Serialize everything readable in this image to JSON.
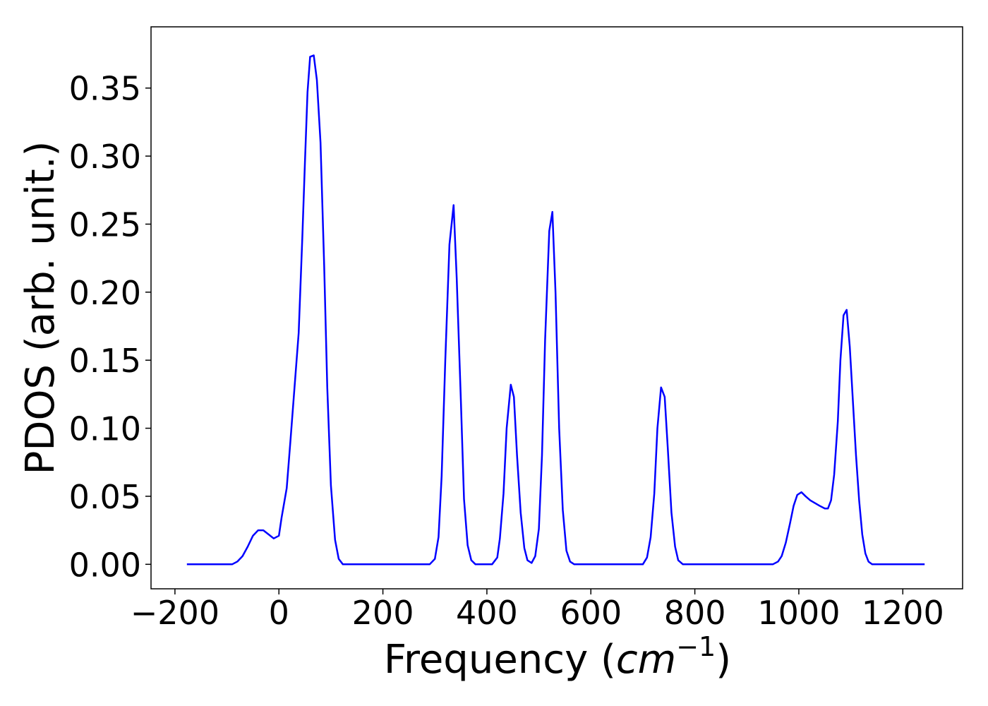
{
  "chart_data": {
    "type": "line",
    "xlabel": [
      "Frequency (",
      "cm",
      "−1",
      ")"
    ],
    "ylabel": "PDOS (arb. unit.)",
    "x": [
      -177,
      -90,
      -80,
      -70,
      -60,
      -50,
      -40,
      -30,
      -20,
      -10,
      0,
      5,
      15,
      22,
      30,
      38,
      45,
      50,
      55,
      60,
      67,
      73,
      80,
      87,
      93,
      100,
      108,
      115,
      123,
      140,
      290,
      300,
      307,
      313,
      320,
      328,
      336,
      342,
      350,
      356,
      363,
      370,
      378,
      410,
      420,
      425,
      432,
      438,
      446,
      452,
      458,
      465,
      472,
      478,
      486,
      493,
      500,
      506,
      512,
      520,
      526,
      532,
      539,
      546,
      553,
      560,
      568,
      700,
      708,
      715,
      722,
      728,
      735,
      742,
      748,
      755,
      762,
      768,
      777,
      950,
      960,
      967,
      975,
      983,
      990,
      997,
      1005,
      1013,
      1022,
      1031,
      1040,
      1050,
      1056,
      1062,
      1068,
      1075,
      1080,
      1086,
      1092,
      1098,
      1104,
      1110,
      1116,
      1122,
      1128,
      1134,
      1141,
      1242
    ],
    "series": [
      {
        "name": "PDOS",
        "color": "#0000ff",
        "values": [
          0,
          0,
          0.002,
          0.006,
          0.013,
          0.021,
          0.025,
          0.025,
          0.022,
          0.019,
          0.021,
          0.034,
          0.056,
          0.09,
          0.13,
          0.17,
          0.24,
          0.295,
          0.347,
          0.373,
          0.374,
          0.356,
          0.31,
          0.22,
          0.13,
          0.058,
          0.018,
          0.004,
          0,
          0,
          0,
          0.004,
          0.02,
          0.065,
          0.15,
          0.235,
          0.264,
          0.21,
          0.12,
          0.048,
          0.014,
          0.003,
          0,
          0,
          0.005,
          0.019,
          0.052,
          0.1,
          0.132,
          0.123,
          0.08,
          0.038,
          0.012,
          0.003,
          0.001,
          0.006,
          0.026,
          0.08,
          0.165,
          0.245,
          0.259,
          0.2,
          0.1,
          0.04,
          0.01,
          0.002,
          0,
          0,
          0.005,
          0.02,
          0.052,
          0.1,
          0.13,
          0.123,
          0.085,
          0.038,
          0.013,
          0.003,
          0,
          0,
          0.002,
          0.006,
          0.016,
          0.03,
          0.043,
          0.051,
          0.053,
          0.05,
          0.047,
          0.045,
          0.043,
          0.041,
          0.041,
          0.047,
          0.066,
          0.105,
          0.15,
          0.183,
          0.187,
          0.16,
          0.12,
          0.08,
          0.047,
          0.022,
          0.008,
          0.002,
          0,
          0
        ]
      }
    ],
    "xlim": [
      -246,
      1315
    ],
    "ylim": [
      -0.018,
      0.395
    ],
    "xticks": [
      {
        "value": -200,
        "label": "−200"
      },
      0,
      200,
      400,
      600,
      800,
      1000,
      1200
    ],
    "yticks": [
      {
        "value": 0,
        "label": "0.00"
      },
      {
        "value": 0.05,
        "label": "0.05"
      },
      {
        "value": 0.1,
        "label": "0.10"
      },
      {
        "value": 0.15,
        "label": "0.15"
      },
      {
        "value": 0.2,
        "label": "0.20"
      },
      {
        "value": 0.25,
        "label": "0.25"
      },
      {
        "value": 0.3,
        "label": "0.30"
      },
      {
        "value": 0.35,
        "label": "0.35"
      }
    ],
    "grid": false
  }
}
